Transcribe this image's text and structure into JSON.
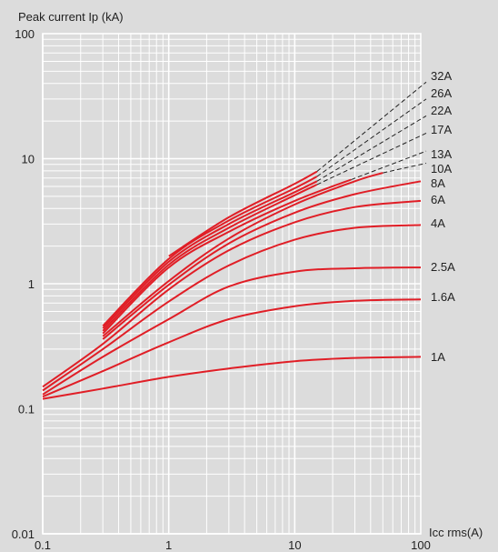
{
  "chart_data": {
    "type": "line",
    "title": "",
    "ylabel": "Peak current Ip (kA)",
    "xlabel": "Icc rms(A)",
    "x_scale": "log",
    "y_scale": "log",
    "xlim": [
      0.1,
      100
    ],
    "ylim": [
      0.01,
      100
    ],
    "grid": true,
    "x_ticks": [
      "0.1",
      "1",
      "10",
      "100"
    ],
    "y_ticks": [
      "100",
      "10",
      "1",
      "0.1",
      "0.01"
    ],
    "colors": {
      "series": "#e01e26",
      "extension": "#222222",
      "grid": "#ffffff",
      "background": "#dcdcdc"
    },
    "series": [
      {
        "name": "1A",
        "x": [
          0.1,
          0.3,
          1,
          3,
          10,
          30,
          100
        ],
        "y": [
          0.12,
          0.145,
          0.18,
          0.21,
          0.24,
          0.255,
          0.26
        ]
      },
      {
        "name": "1.6A",
        "x": [
          0.1,
          0.3,
          1,
          3,
          10,
          30,
          100
        ],
        "y": [
          0.125,
          0.2,
          0.34,
          0.52,
          0.66,
          0.73,
          0.75
        ]
      },
      {
        "name": "2.5A",
        "x": [
          0.1,
          0.3,
          1,
          3,
          10,
          30,
          100
        ],
        "y": [
          0.13,
          0.26,
          0.52,
          0.95,
          1.25,
          1.33,
          1.35
        ]
      },
      {
        "name": "4A",
        "x": [
          0.1,
          0.3,
          1,
          3,
          10,
          30,
          100
        ],
        "y": [
          0.14,
          0.3,
          0.72,
          1.4,
          2.25,
          2.8,
          2.95
        ]
      },
      {
        "name": "6A",
        "x": [
          0.1,
          0.3,
          1,
          3,
          10,
          30,
          100
        ],
        "y": [
          0.15,
          0.33,
          0.9,
          1.85,
          3.1,
          4.1,
          4.6
        ]
      },
      {
        "name": "8A",
        "x": [
          0.3,
          1,
          3,
          10,
          30,
          100
        ],
        "y": [
          0.36,
          0.98,
          2.1,
          3.7,
          5.2,
          6.6
        ]
      },
      {
        "name": "10A",
        "x": [
          0.3,
          1,
          3,
          10,
          30,
          50
        ],
        "y": [
          0.38,
          1.05,
          2.3,
          4.3,
          6.6,
          7.7
        ]
      },
      {
        "name": "13A",
        "x": [
          0.3,
          1,
          3,
          10,
          28
        ],
        "y": [
          0.4,
          1.35,
          2.6,
          4.6,
          6.8
        ]
      },
      {
        "name": "17A",
        "x": [
          0.3,
          1,
          3,
          10,
          15
        ],
        "y": [
          0.42,
          1.42,
          2.8,
          5.1,
          6.2
        ]
      },
      {
        "name": "22A",
        "x": [
          0.3,
          1,
          3,
          10,
          15
        ],
        "y": [
          0.44,
          1.5,
          3.0,
          5.4,
          6.6
        ]
      },
      {
        "name": "26A",
        "x": [
          0.3,
          1,
          3,
          10,
          15
        ],
        "y": [
          0.46,
          1.58,
          3.2,
          5.8,
          7.2
        ]
      },
      {
        "name": "32A",
        "x": [
          1,
          3,
          10,
          15
        ],
        "y": [
          1.66,
          3.4,
          6.3,
          7.9
        ]
      }
    ],
    "extensions": [
      {
        "name": "32A",
        "from": [
          15,
          7.9
        ],
        "to": [
          100,
          41
        ]
      },
      {
        "name": "26A",
        "from": [
          15,
          7.2
        ],
        "to": [
          100,
          30
        ]
      },
      {
        "name": "22A",
        "from": [
          15,
          6.6
        ],
        "to": [
          100,
          22
        ]
      },
      {
        "name": "17A",
        "from": [
          15,
          6.2
        ],
        "to": [
          100,
          16
        ]
      },
      {
        "name": "13A",
        "from": [
          28,
          6.8
        ],
        "to": [
          100,
          11.5
        ]
      },
      {
        "name": "10A",
        "from": [
          50,
          7.7
        ],
        "to": [
          100,
          9.2
        ]
      }
    ],
    "legend_placement": "right-inline"
  }
}
